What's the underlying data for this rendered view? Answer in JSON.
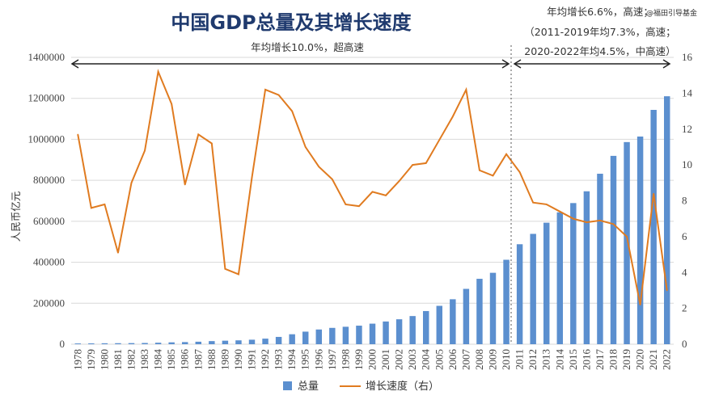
{
  "watermark": "@福田引导基金",
  "chart_data": {
    "type": "bar+line",
    "title": "中国GDP总量及其增长速度",
    "ylabel": "人民币亿元",
    "ylim": [
      0,
      1400000
    ],
    "y_ticks": [
      "0",
      "200000",
      "400000",
      "600000",
      "800000",
      "1000000",
      "1200000",
      "1400000"
    ],
    "y2lim": [
      0,
      16
    ],
    "y2_ticks": [
      "0",
      "2",
      "4",
      "6",
      "8",
      "10",
      "12",
      "14",
      "16"
    ],
    "grid": true,
    "legend_position": "bottom",
    "categories": [
      "1978",
      "1979",
      "1980",
      "1981",
      "1982",
      "1983",
      "1984",
      "1985",
      "1986",
      "1987",
      "1988",
      "1989",
      "1990",
      "1991",
      "1992",
      "1993",
      "1994",
      "1995",
      "1996",
      "1997",
      "1998",
      "1999",
      "2000",
      "2001",
      "2002",
      "2003",
      "2004",
      "2005",
      "2006",
      "2007",
      "2008",
      "2009",
      "2010",
      "2011",
      "2012",
      "2013",
      "2014",
      "2015",
      "2016",
      "2017",
      "2018",
      "2019",
      "2020",
      "2021",
      "2022"
    ],
    "series": [
      {
        "name": "总量",
        "type": "bar",
        "axis": "left",
        "color": "#5b8fcf",
        "values": [
          3679,
          4101,
          4588,
          4936,
          5373,
          6021,
          7279,
          9099,
          10376,
          12175,
          15180,
          17180,
          18873,
          22006,
          27195,
          35673,
          48638,
          61340,
          71814,
          79715,
          85196,
          90564,
          100280,
          110863,
          121717,
          137422,
          161840,
          187319,
          219439,
          270092,
          319245,
          348518,
          412119,
          487940,
          538580,
          592963,
          643563,
          688858,
          746395,
          832036,
          919281,
          986515,
          1013567,
          1143670,
          1210207
        ]
      },
      {
        "name": "增长速度（右）",
        "type": "line",
        "axis": "right",
        "color": "#e07b20",
        "values": [
          11.7,
          7.6,
          7.8,
          5.1,
          9.0,
          10.8,
          15.2,
          13.4,
          8.9,
          11.7,
          11.2,
          4.2,
          3.9,
          9.3,
          14.2,
          13.9,
          13.0,
          11.0,
          9.9,
          9.2,
          7.8,
          7.7,
          8.5,
          8.3,
          9.1,
          10.0,
          10.1,
          11.4,
          12.7,
          14.2,
          9.7,
          9.4,
          10.6,
          9.6,
          7.9,
          7.8,
          7.4,
          7.0,
          6.8,
          6.9,
          6.7,
          6.0,
          2.2,
          8.4,
          3.0
        ]
      }
    ],
    "annotations": {
      "period1": "年均增长10.0%，超高速",
      "period2_line1": "年均增长6.6%，高速；",
      "period2_line2": "（2011-2019年均7.3%，高速；",
      "period2_line3": "2020-2022年均4.5%，中高速）"
    }
  }
}
